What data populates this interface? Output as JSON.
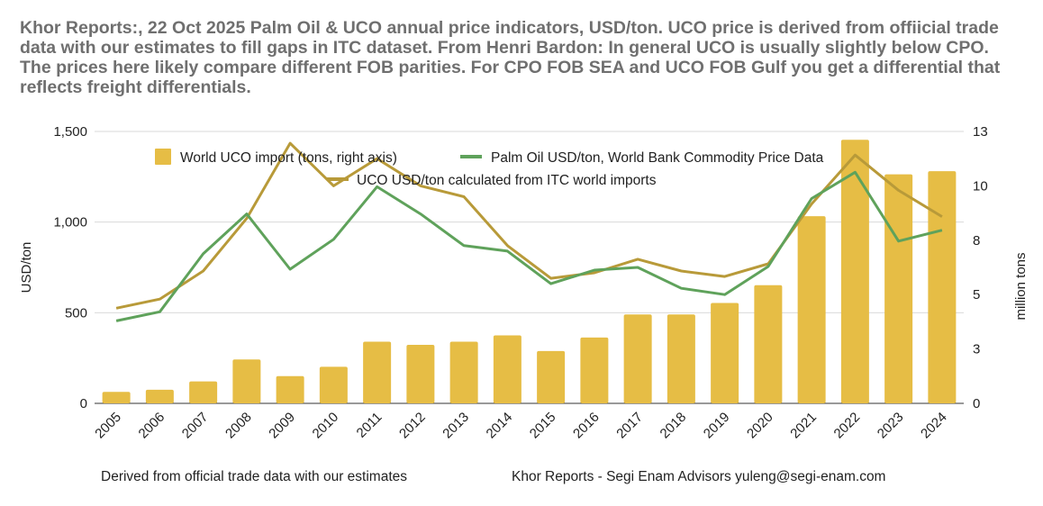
{
  "title": "Khor Reports:, 22 Oct 2025 Palm Oil & UCO annual price indicators, USD/ton. UCO price is derived from offiicial trade data with our estimates to fill gaps in ITC dataset. From Henri Bardon: In general UCO is usually slightly below CPO. The prices here likely compare different FOB parities. For CPO FOB SEA and UCO FOB Gulf you get a differential that reflects freight differentials.",
  "footer_left": "Derived from official trade data with our estimates",
  "footer_right": "Khor Reports - Segi Enam Advisors yuleng@segi-enam.com",
  "colors": {
    "bars": "#e6bd45",
    "palm": "#5fa25b",
    "uco": "#b89a39",
    "grid": "#d9d9d9"
  },
  "chart_data": {
    "type": "bar+line",
    "categories": [
      "2005",
      "2006",
      "2007",
      "2008",
      "2009",
      "2010",
      "2011",
      "2012",
      "2013",
      "2014",
      "2015",
      "2016",
      "2017",
      "2018",
      "2019",
      "2020",
      "2021",
      "2022",
      "2023",
      "2024"
    ],
    "left_axis": {
      "label": "USD/ton",
      "ylim": [
        0,
        1500
      ],
      "ticks": [
        0,
        500,
        1000,
        1500
      ],
      "tick_labels": [
        "0",
        "500",
        "1,000",
        "1,500"
      ]
    },
    "right_axis": {
      "label": "million tons",
      "ylim": [
        0,
        13
      ],
      "ticks": [
        0,
        2.6,
        5.2,
        7.8,
        10.4,
        13
      ],
      "tick_labels": [
        "0",
        "3",
        "5",
        "8",
        "10",
        "13"
      ]
    },
    "series": [
      {
        "name": "World UCO import (tons, right axis)",
        "type": "bar",
        "axis": "right",
        "values": [
          0.55,
          0.65,
          1.05,
          2.1,
          1.3,
          1.75,
          2.95,
          2.8,
          2.95,
          3.25,
          2.5,
          3.15,
          4.25,
          4.25,
          4.8,
          5.65,
          8.95,
          12.6,
          10.95,
          11.1
        ]
      },
      {
        "name": "Palm Oil USD/ton, World Bank Commodity Price Data",
        "type": "line",
        "axis": "left",
        "values": [
          455,
          505,
          825,
          1045,
          740,
          905,
          1195,
          1045,
          870,
          840,
          660,
          735,
          750,
          635,
          600,
          755,
          1130,
          1275,
          895,
          955
        ]
      },
      {
        "name": "UCO USD/ton calculated from ITC world imports",
        "type": "line",
        "axis": "left",
        "values": [
          525,
          575,
          730,
          1020,
          1435,
          1200,
          1350,
          1200,
          1140,
          870,
          690,
          720,
          795,
          730,
          700,
          770,
          1100,
          1370,
          1175,
          1030
        ]
      }
    ]
  }
}
